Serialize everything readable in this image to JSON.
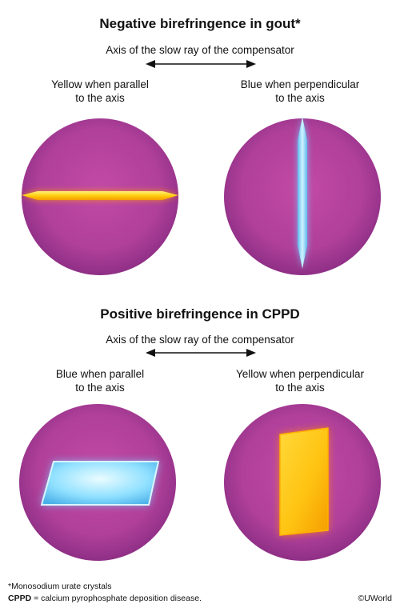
{
  "sections": [
    {
      "title": "Negative birefringence in gout*",
      "axis_caption": "Axis of the slow ray of the compensator",
      "left_label": "Yellow when parallel\nto the axis",
      "right_label": "Blue when perpendicular\nto the axis"
    },
    {
      "title": "Positive birefringence in CPPD",
      "axis_caption": "Axis of the slow ray of the compensator",
      "left_label": "Blue when parallel\nto the axis",
      "right_label": "Yellow when perpendicular\nto the axis"
    }
  ],
  "footnotes": {
    "note1": "*Monosodium urate crystals",
    "note2_term": "CPPD",
    "note2_rest": " = calcium pyrophosphate deposition disease."
  },
  "copyright": "©UWorld",
  "colors": {
    "background_magenta": "#b0409a",
    "crystal_yellow": "#ffd21e",
    "crystal_blue": "#7fdcff"
  }
}
